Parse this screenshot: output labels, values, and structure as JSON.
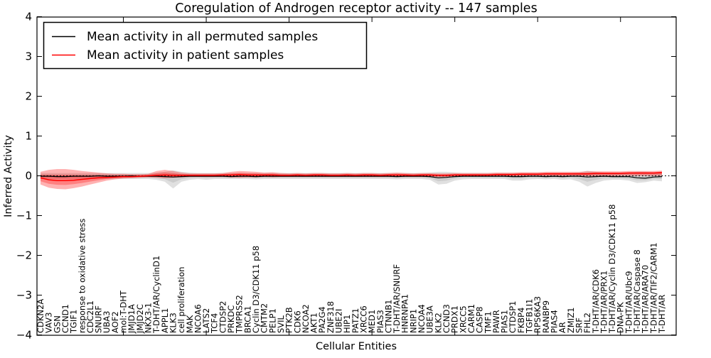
{
  "title": "Coregulation of Androgen receptor activity -- 147 samples",
  "legend": {
    "items": [
      {
        "label": "Mean activity in all permuted samples",
        "color": "#000000"
      },
      {
        "label": "Mean activity in patient samples",
        "color": "#ff0000"
      }
    ]
  },
  "axes": {
    "xlabel": "Cellular Entities",
    "ylabel": "Inferred Activity",
    "ytick_labels": [
      "4",
      "3",
      "2",
      "1",
      "0",
      "−1",
      "−2",
      "−3",
      "−4"
    ],
    "ytick_values": [
      4,
      3,
      2,
      1,
      0,
      -1,
      -2,
      -3,
      -4
    ],
    "major_xtick_indices": [
      10,
      20,
      30,
      40,
      50,
      60,
      70
    ]
  },
  "chart_data": {
    "type": "line",
    "title": "Coregulation of Androgen receptor activity -- 147 samples",
    "xlabel": "Cellular Entities",
    "ylabel": "Inferred Activity",
    "ylim": [
      -4,
      4
    ],
    "grid": false,
    "legend_position": "upper left",
    "zero_line_dotted": true,
    "categories": [
      "CDKN2A",
      "VAV3",
      "GSN",
      "CCND1",
      "TGIF1",
      "response to oxidative stress",
      "CDC2L1",
      "SNURF",
      "UBA3",
      "AOF2",
      "mol:T-DHT",
      "JMJD1A",
      "JMJD2C",
      "NKX3-1",
      "T-DHT/AR/CyclinD1",
      "APPL1",
      "KLK3",
      "cell proliferation",
      "MAK",
      "NCOA6",
      "LATS2",
      "TCF4",
      "CTDSP2",
      "PRKDC",
      "TMPRSS2",
      "BRCA1",
      "Cyclin D3/CDK11 p58",
      "CMTM2",
      "PELP1",
      "SVIL",
      "PTK2B",
      "CDK6",
      "NCOA2",
      "AKT1",
      "PA2G4",
      "ZNF318",
      "UBE2I",
      "HIP1",
      "PATZ1",
      "XRCC6",
      "MED1",
      "PIAS3",
      "CTNNB1",
      "T-DHT/AR/SNURF",
      "HNRNPA1",
      "NRIP1",
      "NCOA4",
      "UBE3A",
      "KLK2",
      "CCND3",
      "PRDX1",
      "XRCC5",
      "CARM1",
      "CASP8",
      "TMF1",
      "PAWR",
      "PIAS1",
      "CTDSP1",
      "FKBP4",
      "TGFB1I1",
      "RPS6KA3",
      "RANBP9",
      "PIAS4",
      "AR",
      "ZMIZ1",
      "SRF",
      "FHL2",
      "T-DHT/AR/CDK6",
      "T-DHT/AR/PRX1",
      "T-DHT/AR/Cyclin D3/CDK11 p58",
      "DNA-PK",
      "T-DHT/AR/Ubc9",
      "T-DHT/AR/Caspase 8",
      "T-DHT/AR/ARA70",
      "T-DHT/AR/TIF2/CARM1",
      "T-DHT/AR"
    ],
    "series": [
      {
        "name": "Mean activity in all permuted samples",
        "color": "#000000",
        "values": [
          -0.01,
          -0.01,
          -0.02,
          -0.02,
          -0.01,
          -0.01,
          -0.01,
          0.0,
          -0.01,
          -0.01,
          -0.01,
          0.0,
          -0.01,
          -0.01,
          -0.01,
          -0.02,
          -0.03,
          -0.02,
          -0.01,
          -0.01,
          -0.01,
          -0.01,
          -0.01,
          -0.02,
          -0.01,
          -0.01,
          -0.02,
          -0.01,
          -0.01,
          -0.01,
          -0.01,
          -0.01,
          -0.01,
          -0.01,
          -0.01,
          -0.01,
          -0.01,
          -0.01,
          -0.01,
          -0.01,
          -0.01,
          -0.01,
          -0.01,
          -0.02,
          -0.01,
          -0.01,
          -0.01,
          -0.02,
          -0.05,
          -0.04,
          -0.02,
          -0.01,
          -0.01,
          -0.01,
          -0.01,
          -0.01,
          -0.01,
          -0.02,
          -0.02,
          -0.01,
          -0.01,
          -0.02,
          -0.01,
          -0.02,
          -0.01,
          -0.01,
          -0.03,
          -0.02,
          -0.01,
          -0.02,
          -0.02,
          -0.02,
          -0.05,
          -0.06,
          -0.03,
          -0.02
        ]
      },
      {
        "name": "Mean activity in patient samples",
        "color": "#ff0000",
        "values": [
          -0.05,
          -0.1,
          -0.12,
          -0.12,
          -0.11,
          -0.09,
          -0.07,
          -0.05,
          -0.04,
          -0.03,
          -0.02,
          -0.02,
          -0.01,
          0.0,
          0.01,
          0.02,
          0.01,
          0.01,
          0.01,
          0.01,
          0.01,
          0.01,
          0.02,
          0.02,
          0.03,
          0.02,
          0.02,
          0.02,
          0.02,
          0.01,
          0.01,
          0.02,
          0.01,
          0.02,
          0.02,
          0.01,
          0.01,
          0.02,
          0.01,
          0.02,
          0.02,
          0.01,
          0.02,
          0.02,
          0.02,
          0.01,
          0.02,
          0.02,
          0.01,
          0.01,
          0.02,
          0.02,
          0.02,
          0.02,
          0.02,
          0.03,
          0.03,
          0.03,
          0.04,
          0.04,
          0.04,
          0.05,
          0.05,
          0.05,
          0.05,
          0.05,
          0.05,
          0.06,
          0.06,
          0.06,
          0.06,
          0.07,
          0.07,
          0.07,
          0.07,
          0.08
        ]
      }
    ],
    "bands": [
      {
        "name": "permuted-samples-std-band",
        "color": "#999999",
        "series_ref": 0,
        "upper": [
          0.07,
          0.07,
          0.07,
          0.07,
          0.07,
          0.07,
          0.07,
          0.07,
          0.07,
          0.07,
          0.07,
          0.07,
          0.07,
          0.07,
          0.08,
          0.1,
          0.14,
          0.1,
          0.08,
          0.07,
          0.07,
          0.07,
          0.07,
          0.07,
          0.07,
          0.07,
          0.07,
          0.07,
          0.07,
          0.07,
          0.07,
          0.07,
          0.07,
          0.07,
          0.07,
          0.07,
          0.07,
          0.07,
          0.07,
          0.07,
          0.07,
          0.07,
          0.07,
          0.07,
          0.07,
          0.07,
          0.07,
          0.08,
          0.1,
          0.1,
          0.08,
          0.07,
          0.07,
          0.07,
          0.07,
          0.07,
          0.07,
          0.07,
          0.07,
          0.07,
          0.07,
          0.07,
          0.07,
          0.07,
          0.07,
          0.08,
          0.13,
          0.1,
          0.08,
          0.08,
          0.08,
          0.08,
          0.1,
          0.1,
          0.08,
          0.1
        ],
        "lower": [
          -0.08,
          -0.08,
          -0.08,
          -0.08,
          -0.08,
          -0.08,
          -0.08,
          -0.08,
          -0.08,
          -0.08,
          -0.08,
          -0.08,
          -0.08,
          -0.08,
          -0.1,
          -0.15,
          -0.32,
          -0.15,
          -0.1,
          -0.08,
          -0.1,
          -0.08,
          -0.08,
          -0.08,
          -0.08,
          -0.08,
          -0.09,
          -0.08,
          -0.08,
          -0.08,
          -0.08,
          -0.08,
          -0.08,
          -0.08,
          -0.08,
          -0.08,
          -0.08,
          -0.08,
          -0.08,
          -0.08,
          -0.08,
          -0.08,
          -0.08,
          -0.09,
          -0.08,
          -0.08,
          -0.08,
          -0.1,
          -0.22,
          -0.2,
          -0.12,
          -0.09,
          -0.08,
          -0.08,
          -0.08,
          -0.08,
          -0.08,
          -0.12,
          -0.12,
          -0.09,
          -0.08,
          -0.09,
          -0.08,
          -0.1,
          -0.09,
          -0.15,
          -0.27,
          -0.18,
          -0.12,
          -0.1,
          -0.1,
          -0.12,
          -0.18,
          -0.16,
          -0.12,
          -0.14
        ]
      },
      {
        "name": "patient-samples-std-band",
        "color": "#ff0000",
        "series_ref": 1,
        "upper": [
          0.1,
          0.15,
          0.17,
          0.17,
          0.15,
          0.12,
          0.1,
          0.08,
          0.06,
          0.05,
          0.05,
          0.04,
          0.04,
          0.05,
          0.12,
          0.15,
          0.12,
          0.08,
          0.06,
          0.06,
          0.06,
          0.06,
          0.07,
          0.1,
          0.12,
          0.11,
          0.1,
          0.08,
          0.09,
          0.07,
          0.06,
          0.07,
          0.06,
          0.07,
          0.07,
          0.06,
          0.06,
          0.07,
          0.06,
          0.07,
          0.07,
          0.06,
          0.07,
          0.08,
          0.07,
          0.06,
          0.07,
          0.07,
          0.06,
          0.06,
          0.07,
          0.07,
          0.07,
          0.07,
          0.07,
          0.08,
          0.08,
          0.08,
          0.09,
          0.09,
          0.09,
          0.1,
          0.1,
          0.1,
          0.1,
          0.1,
          0.11,
          0.11,
          0.11,
          0.11,
          0.11,
          0.12,
          0.12,
          0.12,
          0.12,
          0.13
        ],
        "lower": [
          -0.22,
          -0.3,
          -0.33,
          -0.34,
          -0.31,
          -0.27,
          -0.22,
          -0.17,
          -0.12,
          -0.09,
          -0.07,
          -0.06,
          -0.05,
          -0.04,
          -0.05,
          -0.06,
          -0.05,
          -0.04,
          -0.03,
          -0.03,
          -0.03,
          -0.03,
          -0.03,
          -0.04,
          -0.05,
          -0.04,
          -0.04,
          -0.03,
          -0.04,
          -0.03,
          -0.03,
          -0.03,
          -0.03,
          -0.03,
          -0.03,
          -0.03,
          -0.03,
          -0.03,
          -0.03,
          -0.03,
          -0.03,
          -0.03,
          -0.03,
          -0.03,
          -0.03,
          -0.03,
          -0.03,
          -0.03,
          -0.03,
          -0.03,
          -0.02,
          -0.02,
          -0.02,
          -0.02,
          -0.02,
          -0.02,
          -0.02,
          -0.02,
          -0.02,
          -0.02,
          -0.01,
          -0.01,
          -0.01,
          -0.01,
          -0.01,
          -0.01,
          -0.01,
          -0.01,
          -0.01,
          -0.01,
          0.0,
          0.0,
          0.0,
          0.0,
          0.0,
          0.0
        ]
      }
    ]
  }
}
